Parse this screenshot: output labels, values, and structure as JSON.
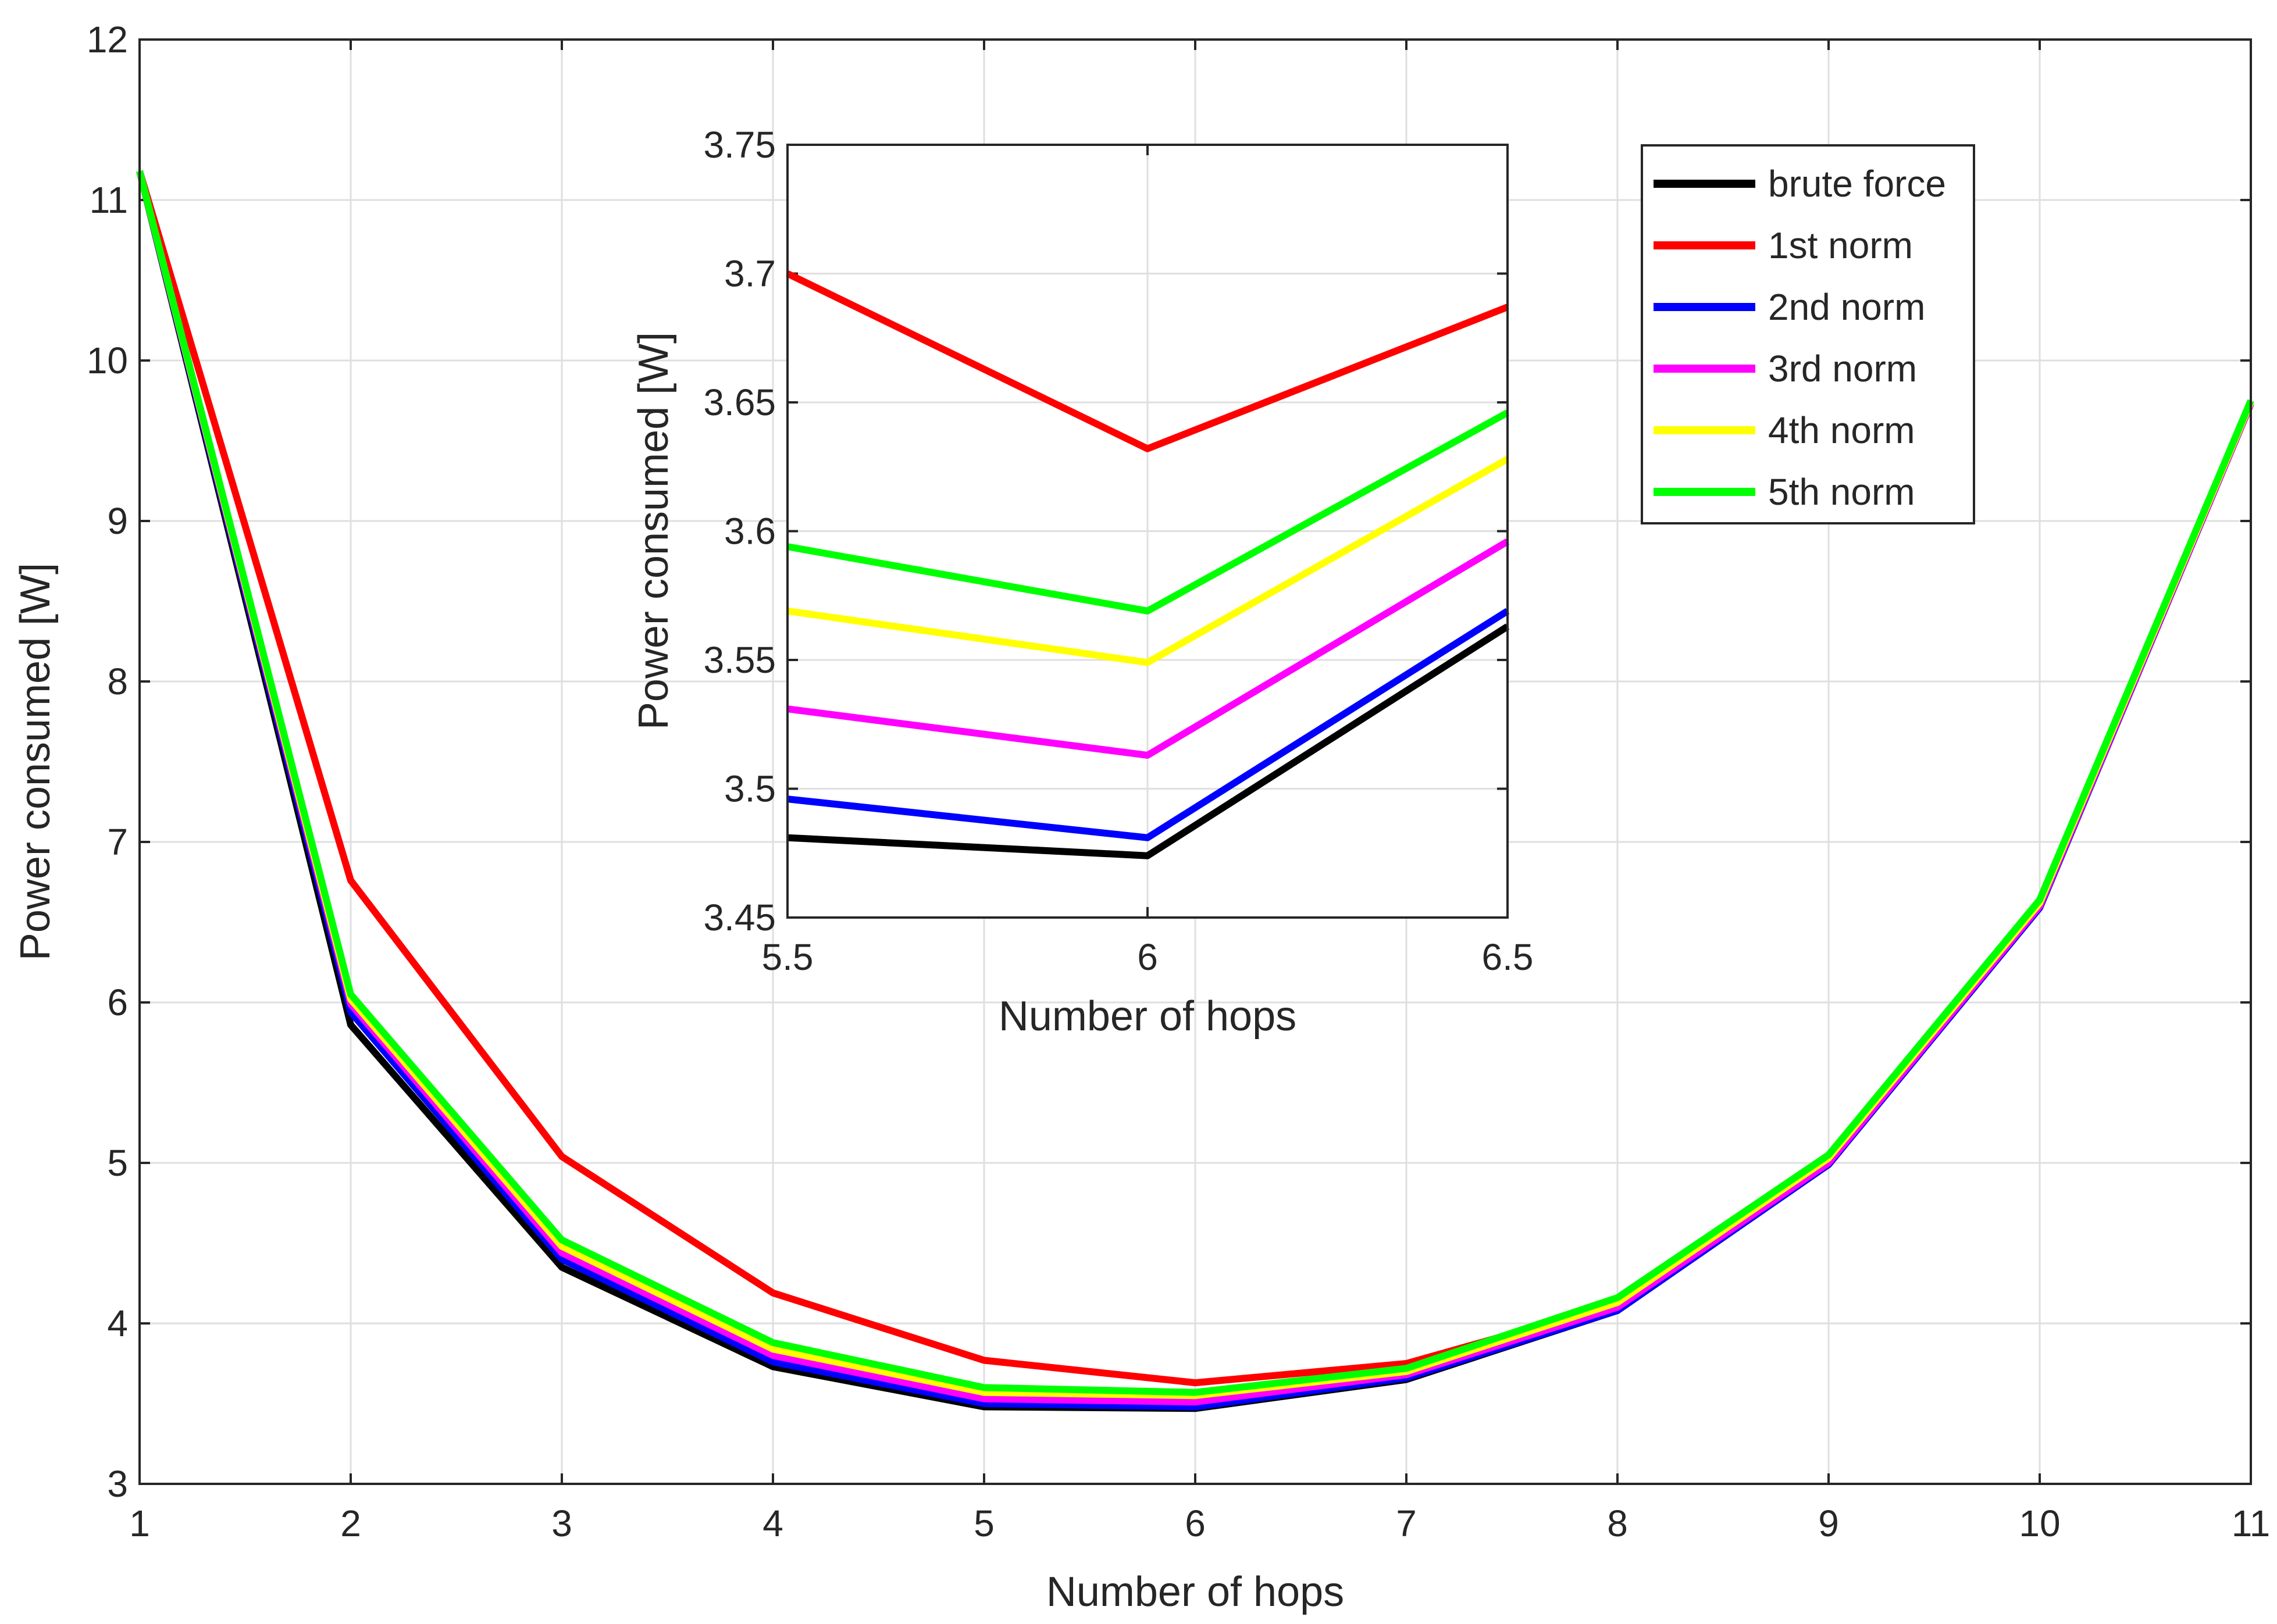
{
  "chart_data": [
    {
      "id": "main",
      "type": "line",
      "title": "",
      "xlabel": "Number of hops",
      "ylabel": "Power consumed [W]",
      "xlim": [
        1,
        11
      ],
      "ylim": [
        3,
        12
      ],
      "xticks": [
        1,
        2,
        3,
        4,
        5,
        6,
        7,
        8,
        9,
        10,
        11
      ],
      "yticks": [
        3,
        4,
        5,
        6,
        7,
        8,
        9,
        10,
        11,
        12
      ],
      "grid": true,
      "x": [
        1,
        2,
        3,
        4,
        5,
        6,
        7,
        8,
        9,
        10,
        11
      ],
      "series": [
        {
          "name": "brute force",
          "color": "#000000",
          "values": [
            11.18,
            5.86,
            4.35,
            3.73,
            3.48,
            3.47,
            3.65,
            4.08,
            4.99,
            6.59,
            9.73
          ]
        },
        {
          "name": "1st norm",
          "color": "#ff0000",
          "values": [
            11.18,
            6.76,
            5.04,
            4.19,
            3.77,
            3.63,
            3.75,
            4.12,
            5.03,
            6.62,
            9.74
          ]
        },
        {
          "name": "2nd norm",
          "color": "#0000ff",
          "values": [
            11.18,
            5.94,
            4.4,
            3.76,
            3.5,
            3.48,
            3.66,
            4.08,
            4.99,
            6.59,
            9.73
          ]
        },
        {
          "name": "3rd norm",
          "color": "#ff00ff",
          "values": [
            11.18,
            5.99,
            4.44,
            3.8,
            3.53,
            3.51,
            3.68,
            4.1,
            5.0,
            6.6,
            9.73
          ]
        },
        {
          "name": "4th norm",
          "color": "#ffff00",
          "values": [
            11.18,
            6.02,
            4.48,
            3.84,
            3.57,
            3.55,
            3.7,
            4.13,
            5.03,
            6.62,
            9.74
          ]
        },
        {
          "name": "5th norm",
          "color": "#00ff00",
          "values": [
            11.18,
            6.05,
            4.52,
            3.88,
            3.6,
            3.57,
            3.72,
            4.16,
            5.05,
            6.64,
            9.75
          ]
        }
      ],
      "legend": {
        "position": "top-right"
      }
    },
    {
      "id": "inset",
      "type": "line",
      "title": "",
      "xlabel": "Number of hops",
      "ylabel": "Power consumed [W]",
      "xlim": [
        5.5,
        6.5
      ],
      "ylim": [
        3.45,
        3.75
      ],
      "xticks": [
        5.5,
        6,
        6.5
      ],
      "yticks": [
        3.45,
        3.5,
        3.55,
        3.6,
        3.65,
        3.7,
        3.75
      ],
      "grid": true,
      "x": [
        5.5,
        6,
        6.5
      ],
      "series": [
        {
          "name": "brute force",
          "color": "#000000",
          "values": [
            3.481,
            3.474,
            3.563
          ]
        },
        {
          "name": "1st norm",
          "color": "#ff0000",
          "values": [
            3.7,
            3.632,
            3.687
          ]
        },
        {
          "name": "2nd norm",
          "color": "#0000ff",
          "values": [
            3.496,
            3.481,
            3.569
          ]
        },
        {
          "name": "3rd norm",
          "color": "#ff00ff",
          "values": [
            3.531,
            3.513,
            3.596
          ]
        },
        {
          "name": "4th norm",
          "color": "#ffff00",
          "values": [
            3.569,
            3.549,
            3.628
          ]
        },
        {
          "name": "5th norm",
          "color": "#00ff00",
          "values": [
            3.594,
            3.569,
            3.646
          ]
        }
      ]
    }
  ]
}
